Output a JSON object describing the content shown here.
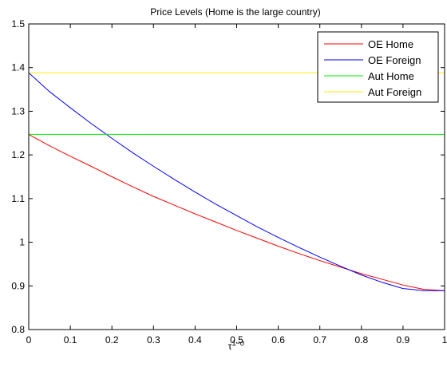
{
  "chart_data": {
    "type": "line",
    "title": "Price Levels (Home is the large country)",
    "xlabel_base": "τ",
    "xlabel_sup": "1−σ",
    "ylabel": "",
    "xlim": [
      0,
      1
    ],
    "ylim": [
      0.8,
      1.5
    ],
    "xticks": [
      0,
      0.1,
      0.2,
      0.3,
      0.4,
      0.5,
      0.6,
      0.7,
      0.8,
      0.9,
      1
    ],
    "xtick_labels": [
      "0",
      "0.1",
      "0.2",
      "0.3",
      "0.4",
      "0.5",
      "0.6",
      "0.7",
      "0.8",
      "0.9",
      "1"
    ],
    "yticks": [
      0.8,
      0.9,
      1,
      1.1,
      1.2,
      1.3,
      1.4,
      1.5
    ],
    "ytick_labels": [
      "0.8",
      "0.9",
      "1",
      "1.1",
      "1.2",
      "1.3",
      "1.4",
      "1.5"
    ],
    "grid": false,
    "legend_position": "top-right",
    "x": [
      0,
      0.05,
      0.1,
      0.15,
      0.2,
      0.25,
      0.3,
      0.35,
      0.4,
      0.45,
      0.5,
      0.55,
      0.6,
      0.65,
      0.7,
      0.75,
      0.8,
      0.85,
      0.9,
      0.95,
      1
    ],
    "series": [
      {
        "name": "OE Home",
        "color": "#ff0000",
        "values": [
          1.247,
          1.221,
          1.197,
          1.174,
          1.15,
          1.127,
          1.105,
          1.085,
          1.065,
          1.046,
          1.027,
          1.009,
          0.991,
          0.974,
          0.958,
          0.943,
          0.928,
          0.915,
          0.902,
          0.892,
          0.889
        ]
      },
      {
        "name": "OE Foreign",
        "color": "#0000ff",
        "values": [
          1.388,
          1.345,
          1.308,
          1.272,
          1.238,
          1.205,
          1.174,
          1.144,
          1.115,
          1.087,
          1.061,
          1.035,
          1.011,
          0.988,
          0.966,
          0.945,
          0.925,
          0.908,
          0.894,
          0.889,
          0.889
        ]
      },
      {
        "name": "Aut Home",
        "color": "#00ee00",
        "values": [
          1.247,
          1.247,
          1.247,
          1.247,
          1.247,
          1.247,
          1.247,
          1.247,
          1.247,
          1.247,
          1.247,
          1.247,
          1.247,
          1.247,
          1.247,
          1.247,
          1.247,
          1.247,
          1.247,
          1.247,
          1.247
        ]
      },
      {
        "name": "Aut Foreign",
        "color": "#ffee00",
        "values": [
          1.388,
          1.388,
          1.388,
          1.388,
          1.388,
          1.388,
          1.388,
          1.388,
          1.388,
          1.388,
          1.388,
          1.388,
          1.388,
          1.388,
          1.388,
          1.388,
          1.388,
          1.388,
          1.388,
          1.388,
          1.388
        ]
      }
    ]
  }
}
